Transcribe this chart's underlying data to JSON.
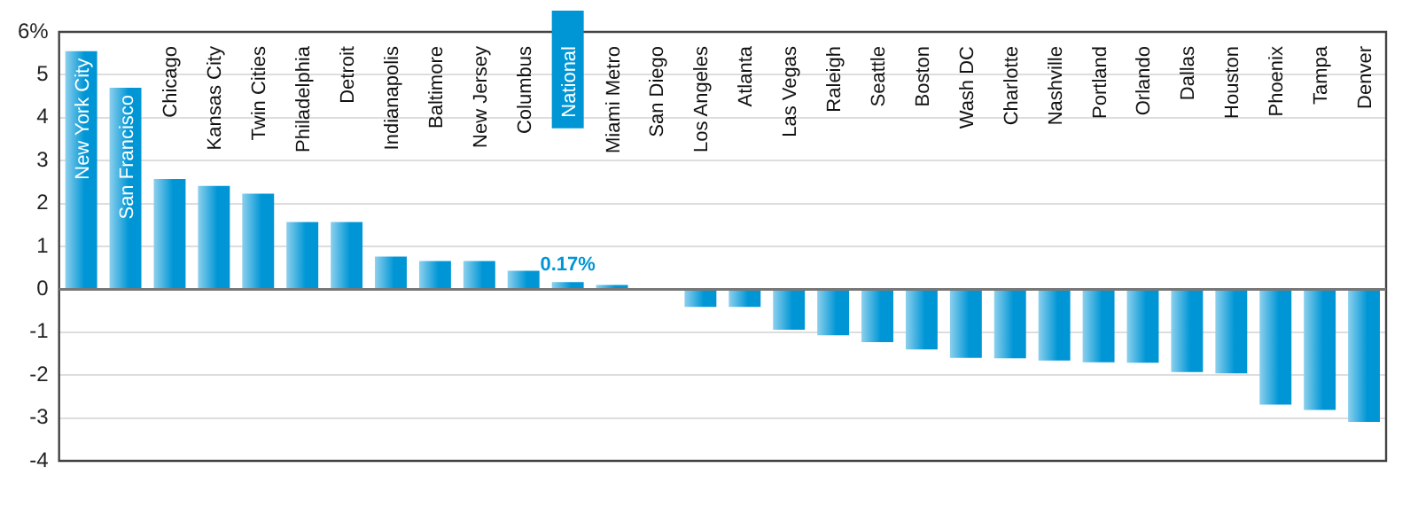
{
  "chart_data": {
    "type": "bar",
    "categories": [
      "New York City",
      "San Francisco",
      "Chicago",
      "Kansas City",
      "Twin Cities",
      "Philadelphia",
      "Detroit",
      "Indianapolis",
      "Baltimore",
      "New Jersey",
      "Columbus",
      "National",
      "Miami Metro",
      "San Diego",
      "Los Angeles",
      "Atlanta",
      "Las Vegas",
      "Raleigh",
      "Seattle",
      "Boston",
      "Wash DC",
      "Charlotte",
      "Nashville",
      "Portland",
      "Orlando",
      "Dallas",
      "Houston",
      "Phoenix",
      "Tampa",
      "Denver"
    ],
    "values": [
      5.55,
      4.7,
      2.57,
      2.41,
      2.23,
      1.57,
      1.57,
      0.76,
      0.66,
      0.66,
      0.43,
      0.17,
      0.1,
      0,
      -0.41,
      -0.41,
      -0.94,
      -1.07,
      -1.23,
      -1.4,
      -1.6,
      -1.61,
      -1.66,
      -1.7,
      -1.71,
      -1.93,
      -1.96,
      -2.69,
      -2.81,
      -3.09
    ],
    "value_labels": [
      null,
      null,
      null,
      null,
      null,
      null,
      null,
      null,
      null,
      null,
      null,
      "0.17%",
      null,
      null,
      null,
      null,
      null,
      null,
      null,
      null,
      null,
      null,
      null,
      null,
      null,
      null,
      null,
      null,
      null,
      null
    ],
    "color": "#0096d6",
    "ylim": [
      -4,
      6
    ],
    "yticks": [
      -4,
      -3,
      -2,
      -1,
      0,
      1,
      2,
      3,
      4,
      5,
      {
        "value": 6,
        "label": "6%"
      }
    ],
    "grid": "y",
    "legend": false
  }
}
